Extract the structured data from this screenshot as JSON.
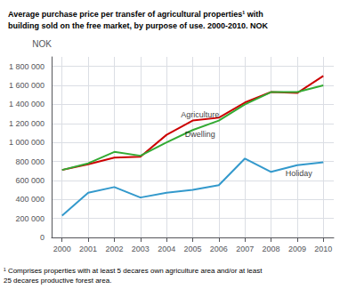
{
  "chart_data": {
    "type": "line",
    "title": "Average purchase price per transfer of agricultural properties¹ with\nbuilding sold on the free market, by purpose of use. 2000-2010. NOK",
    "y_label": "NOK",
    "footnote": "¹ Comprises properties with at least 5 decares own agriculture area and/or at least\n25 decares productive forest area.",
    "x": [
      2000,
      2001,
      2002,
      2003,
      2004,
      2005,
      2006,
      2007,
      2008,
      2009,
      2010
    ],
    "series": [
      {
        "name": "Agriculture",
        "color": "#cc0000",
        "values": [
          710000,
          770000,
          840000,
          850000,
          1080000,
          1230000,
          1260000,
          1420000,
          1530000,
          1520000,
          1700000
        ]
      },
      {
        "name": "Dwelling",
        "color": "#33aa33",
        "values": [
          710000,
          780000,
          900000,
          860000,
          1000000,
          1130000,
          1230000,
          1400000,
          1530000,
          1530000,
          1600000
        ]
      },
      {
        "name": "Holiday",
        "color": "#3399cc",
        "values": [
          230000,
          470000,
          530000,
          420000,
          470000,
          500000,
          550000,
          830000,
          690000,
          760000,
          790000
        ]
      }
    ],
    "annotations": [
      {
        "text": "Agriculture",
        "x": 2004.55,
        "y": 1245000
      },
      {
        "text": "Dwelling",
        "x": 2004.7,
        "y": 1045000
      },
      {
        "text": "Holiday",
        "x": 2008.55,
        "y": 635000
      }
    ],
    "xlim": [
      1999.6,
      2010.4
    ],
    "xticks": [
      2000,
      2001,
      2002,
      2003,
      2004,
      2005,
      2006,
      2007,
      2008,
      2009,
      2010
    ],
    "ylim": [
      0,
      1900000
    ],
    "yticks": [
      0,
      {
        "value": 200000,
        "label": "200 000"
      },
      {
        "value": 400000,
        "label": "400 000"
      },
      {
        "value": 600000,
        "label": "600 000"
      },
      {
        "value": 800000,
        "label": "800 000"
      },
      {
        "value": 1000000,
        "label": "1 000 000"
      },
      {
        "value": 1200000,
        "label": "1 200 000"
      },
      {
        "value": 1400000,
        "label": "1 400 000"
      },
      {
        "value": 1600000,
        "label": "1 600 000"
      },
      {
        "value": 1800000,
        "label": "1 800 000"
      }
    ],
    "grid": true
  }
}
